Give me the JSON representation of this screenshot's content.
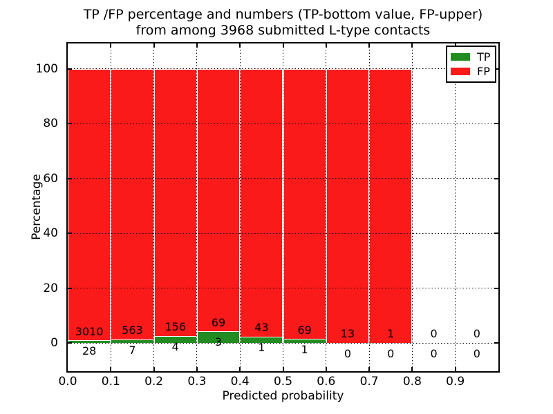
{
  "figure": {
    "title_line1": "TP /FP percentage and numbers (TP-bottom value, FP-upper)",
    "title_line2": "from among 3968 submitted L-type contacts",
    "xlabel": "Predicted probability",
    "ylabel": "Percentage"
  },
  "legend": {
    "items": [
      {
        "label": "TP",
        "color": "#228c22"
      },
      {
        "label": "FP",
        "color": "#fb1a1a"
      }
    ]
  },
  "chart_data": {
    "type": "bar",
    "stacked": true,
    "normalized": "each bin scaled to 100%",
    "title": "TP /FP percentage and numbers (TP-bottom value, FP-upper) from among 3968 submitted L-type contacts",
    "xlabel": "Predicted probability",
    "ylabel": "Percentage",
    "total_submitted_contacts": 3968,
    "bin_width": 0.1,
    "bin_starts": [
      0.0,
      0.1,
      0.2,
      0.3,
      0.4,
      0.5,
      0.6,
      0.7,
      0.8,
      0.9
    ],
    "series": [
      {
        "name": "TP",
        "color": "#228c22",
        "counts": [
          28,
          7,
          4,
          3,
          1,
          1,
          0,
          0,
          0,
          0
        ]
      },
      {
        "name": "FP",
        "color": "#fb1a1a",
        "counts": [
          3010,
          563,
          156,
          69,
          43,
          69,
          13,
          1,
          0,
          0
        ]
      }
    ],
    "xticks": [
      "0.0",
      "0.1",
      "0.2",
      "0.3",
      "0.4",
      "0.5",
      "0.6",
      "0.7",
      "0.8",
      "0.9"
    ],
    "xtick_values": [
      0.0,
      0.1,
      0.2,
      0.3,
      0.4,
      0.5,
      0.6,
      0.7,
      0.8,
      0.9
    ],
    "yticks": [
      "0",
      "20",
      "40",
      "60",
      "80",
      "100"
    ],
    "ytick_values": [
      0,
      20,
      40,
      60,
      80,
      100
    ],
    "xlim": [
      0.0,
      1.0
    ],
    "ylim": [
      -10.3,
      109.2
    ],
    "grid": "dotted black, drawn above bars",
    "legend_position": "upper right",
    "bar_edge_color": "#ffffff"
  }
}
